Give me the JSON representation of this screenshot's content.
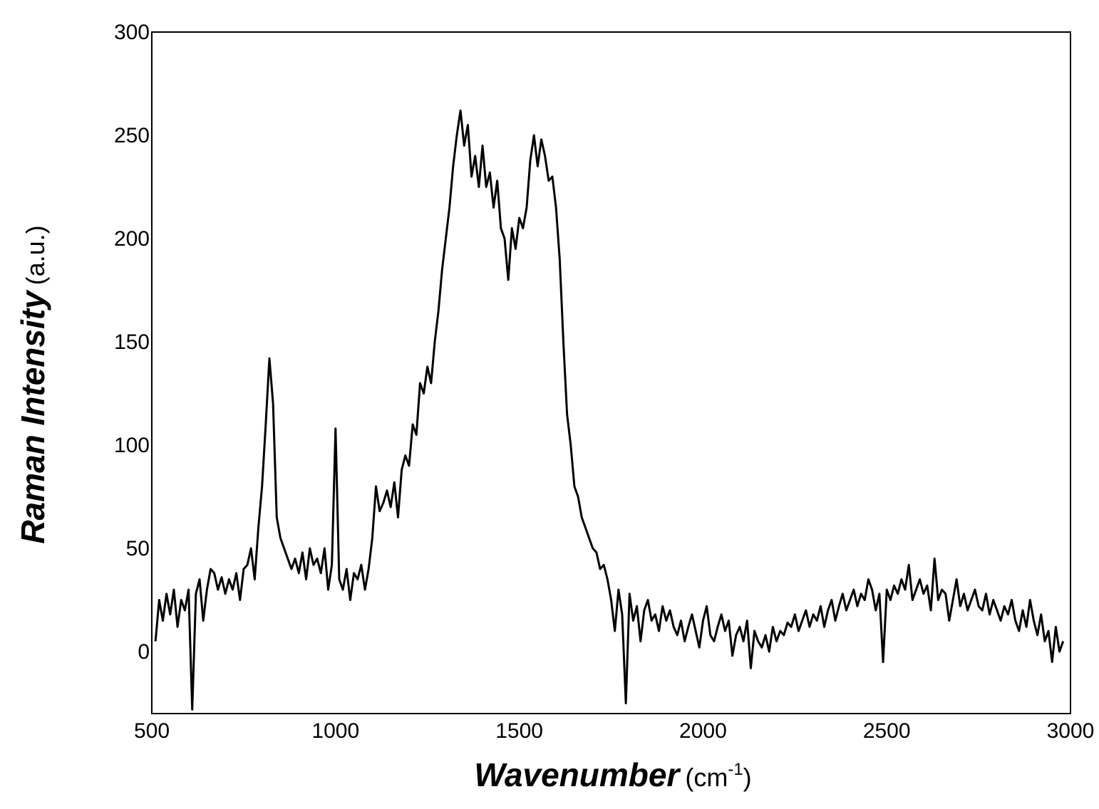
{
  "chart_data": {
    "type": "line",
    "ylabel": "Raman Intensity",
    "ylabel_unit": "(a.u.)",
    "xlabel": "Wavenumber",
    "xlabel_unit": [
      "(cm",
      "-1",
      ")"
    ],
    "xlim": [
      500,
      3000
    ],
    "xticks": [
      500,
      1000,
      1500,
      2000,
      2500,
      3000
    ],
    "ylim": [
      -30,
      300
    ],
    "yticks": [
      0,
      50,
      100,
      150,
      200,
      250,
      300
    ],
    "grid": false,
    "color": "#000000",
    "x": [
      510,
      520,
      530,
      540,
      550,
      560,
      570,
      580,
      590,
      600,
      610,
      620,
      630,
      640,
      650,
      660,
      670,
      680,
      690,
      700,
      710,
      720,
      730,
      740,
      750,
      760,
      770,
      780,
      790,
      800,
      810,
      820,
      830,
      840,
      850,
      860,
      870,
      880,
      890,
      900,
      910,
      920,
      930,
      940,
      950,
      960,
      970,
      980,
      990,
      1000,
      1010,
      1020,
      1030,
      1040,
      1050,
      1060,
      1070,
      1080,
      1090,
      1100,
      1110,
      1120,
      1130,
      1140,
      1150,
      1160,
      1170,
      1180,
      1190,
      1200,
      1210,
      1220,
      1230,
      1240,
      1250,
      1260,
      1270,
      1280,
      1290,
      1300,
      1310,
      1320,
      1330,
      1340,
      1350,
      1360,
      1370,
      1380,
      1390,
      1400,
      1410,
      1420,
      1430,
      1440,
      1450,
      1460,
      1470,
      1480,
      1490,
      1500,
      1510,
      1520,
      1530,
      1540,
      1550,
      1560,
      1570,
      1580,
      1590,
      1600,
      1610,
      1620,
      1630,
      1640,
      1650,
      1660,
      1670,
      1680,
      1690,
      1700,
      1710,
      1720,
      1730,
      1740,
      1750,
      1760,
      1770,
      1780,
      1790,
      1800,
      1810,
      1820,
      1830,
      1840,
      1850,
      1860,
      1870,
      1880,
      1890,
      1900,
      1910,
      1920,
      1930,
      1940,
      1950,
      1960,
      1970,
      1980,
      1990,
      2000,
      2010,
      2020,
      2030,
      2040,
      2050,
      2060,
      2070,
      2080,
      2090,
      2100,
      2110,
      2120,
      2130,
      2140,
      2150,
      2160,
      2170,
      2180,
      2190,
      2200,
      2210,
      2220,
      2230,
      2240,
      2250,
      2260,
      2270,
      2280,
      2290,
      2300,
      2310,
      2320,
      2330,
      2340,
      2350,
      2360,
      2370,
      2380,
      2390,
      2400,
      2410,
      2420,
      2430,
      2440,
      2450,
      2460,
      2470,
      2480,
      2490,
      2500,
      2510,
      2520,
      2530,
      2540,
      2550,
      2560,
      2570,
      2580,
      2590,
      2600,
      2610,
      2620,
      2630,
      2640,
      2650,
      2660,
      2670,
      2680,
      2690,
      2700,
      2710,
      2720,
      2730,
      2740,
      2750,
      2760,
      2770,
      2780,
      2790,
      2800,
      2810,
      2820,
      2830,
      2840,
      2850,
      2860,
      2870,
      2880,
      2890,
      2900,
      2910,
      2920,
      2930,
      2940,
      2950,
      2960,
      2970,
      2980
    ],
    "values": [
      5,
      25,
      15,
      28,
      18,
      30,
      12,
      25,
      20,
      30,
      -28,
      28,
      35,
      15,
      30,
      40,
      38,
      30,
      36,
      28,
      35,
      30,
      38,
      25,
      40,
      42,
      50,
      35,
      60,
      80,
      110,
      142,
      120,
      65,
      55,
      50,
      45,
      40,
      45,
      38,
      48,
      35,
      50,
      42,
      45,
      38,
      50,
      30,
      42,
      108,
      35,
      30,
      40,
      25,
      38,
      35,
      42,
      30,
      40,
      55,
      80,
      68,
      72,
      78,
      70,
      82,
      65,
      88,
      95,
      90,
      110,
      105,
      130,
      125,
      138,
      130,
      150,
      165,
      185,
      200,
      215,
      235,
      250,
      262,
      245,
      255,
      230,
      240,
      225,
      245,
      225,
      232,
      215,
      228,
      205,
      200,
      180,
      205,
      195,
      210,
      205,
      215,
      238,
      250,
      235,
      248,
      240,
      228,
      230,
      215,
      190,
      150,
      115,
      100,
      80,
      75,
      65,
      60,
      55,
      50,
      48,
      40,
      42,
      35,
      25,
      10,
      30,
      18,
      -25,
      28,
      15,
      22,
      5,
      20,
      25,
      15,
      18,
      10,
      22,
      15,
      20,
      12,
      8,
      15,
      5,
      12,
      18,
      10,
      2,
      15,
      22,
      8,
      5,
      12,
      18,
      10,
      15,
      -2,
      8,
      12,
      5,
      15,
      -8,
      10,
      5,
      2,
      8,
      0,
      12,
      5,
      10,
      8,
      14,
      12,
      18,
      10,
      15,
      20,
      12,
      18,
      15,
      22,
      12,
      20,
      25,
      15,
      22,
      28,
      20,
      25,
      30,
      22,
      28,
      25,
      35,
      30,
      20,
      28,
      -5,
      30,
      25,
      32,
      28,
      35,
      30,
      42,
      25,
      30,
      35,
      28,
      32,
      20,
      45,
      25,
      30,
      28,
      15,
      25,
      35,
      22,
      28,
      20,
      25,
      30,
      22,
      20,
      28,
      18,
      25,
      20,
      15,
      22,
      18,
      25,
      15,
      10,
      20,
      12,
      25,
      15,
      8,
      18,
      5,
      10,
      -5,
      12,
      0,
      5
    ]
  }
}
